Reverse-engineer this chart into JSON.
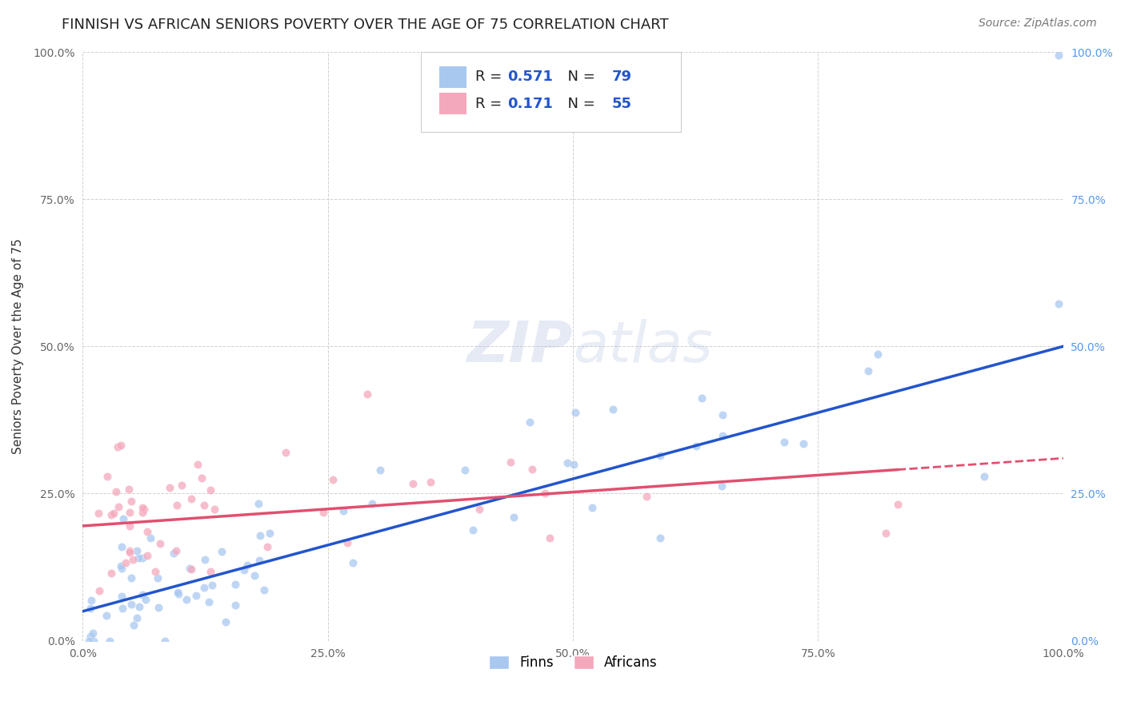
{
  "title": "FINNISH VS AFRICAN SENIORS POVERTY OVER THE AGE OF 75 CORRELATION CHART",
  "source_text": "Source: ZipAtlas.com",
  "ylabel": "Seniors Poverty Over the Age of 75",
  "watermark_zip": "ZIP",
  "watermark_atlas": "atlas",
  "finns_R": 0.571,
  "finns_N": 79,
  "africans_R": 0.171,
  "africans_N": 55,
  "finn_color": "#A8C8F0",
  "african_color": "#F4A8BC",
  "finn_line_color": "#2255CC",
  "african_line_color": "#E05070",
  "xlim": [
    0.0,
    1.0
  ],
  "ylim": [
    0.0,
    1.0
  ],
  "tick_vals": [
    0.0,
    0.25,
    0.5,
    0.75,
    1.0
  ],
  "tick_labels": [
    "0.0%",
    "25.0%",
    "50.0%",
    "75.0%",
    "100.0%"
  ],
  "right_tick_color": "#5599EE",
  "grid_color": "#CCCCCC",
  "background_color": "#FFFFFF",
  "title_fontsize": 13,
  "axis_label_fontsize": 11,
  "tick_fontsize": 10,
  "legend_fontsize": 13,
  "source_fontsize": 10,
  "finn_intercept": 0.05,
  "finn_slope": 0.45,
  "african_intercept": 0.195,
  "african_slope": 0.115
}
